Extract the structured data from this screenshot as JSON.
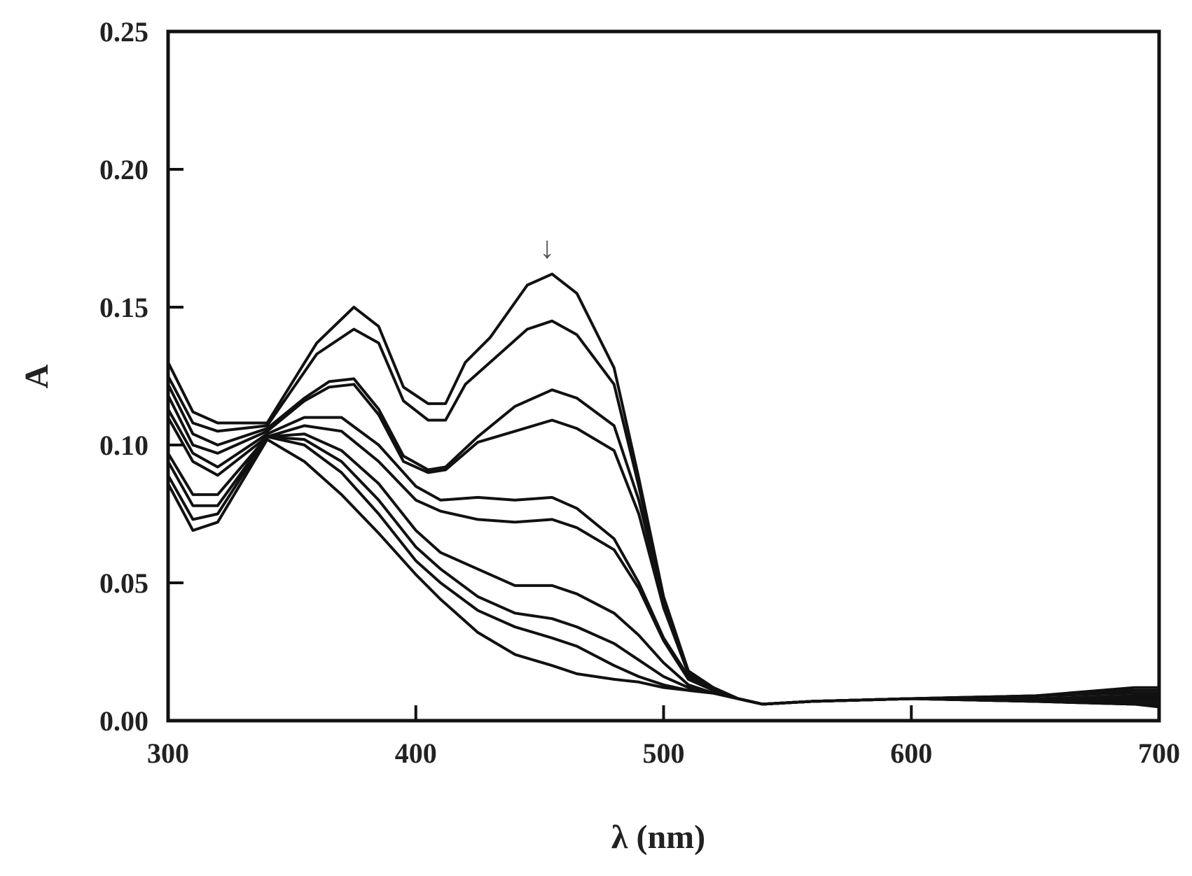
{
  "chart_data": {
    "type": "line",
    "xlabel": "λ (nm)",
    "ylabel": "A",
    "xlim": [
      300,
      700
    ],
    "ylim": [
      0,
      0.25
    ],
    "xticks": [
      300,
      400,
      500,
      600,
      700
    ],
    "xtick_labels": [
      "300",
      "400",
      "500",
      "600",
      "700"
    ],
    "yticks": [
      0,
      0.05,
      0.1,
      0.15,
      0.2,
      0.25
    ],
    "ytick_labels": [
      "0.00",
      "0.05",
      "0.10",
      "0.15",
      "0.20",
      "0.25"
    ],
    "grid": false,
    "legend": "none",
    "line_color": "#111111",
    "annotations": [
      {
        "text": "↓",
        "x": 453,
        "y": 0.172
      }
    ],
    "series": [
      {
        "x": [
          300,
          310,
          320,
          340,
          360,
          375,
          385,
          395,
          405,
          412,
          420,
          430,
          445,
          455,
          465,
          480,
          490,
          500,
          510,
          520,
          530,
          540,
          560,
          600,
          650,
          690,
          700
        ],
        "y": [
          0.13,
          0.112,
          0.108,
          0.108,
          0.137,
          0.15,
          0.143,
          0.121,
          0.115,
          0.115,
          0.13,
          0.139,
          0.158,
          0.162,
          0.155,
          0.128,
          0.088,
          0.045,
          0.018,
          0.012,
          0.008,
          0.006,
          0.007,
          0.008,
          0.009,
          0.012,
          0.012
        ]
      },
      {
        "x": [
          300,
          310,
          320,
          340,
          360,
          375,
          385,
          395,
          405,
          412,
          420,
          430,
          445,
          455,
          465,
          480,
          490,
          500,
          510,
          520,
          530,
          540,
          560,
          600,
          650,
          690,
          700
        ],
        "y": [
          0.125,
          0.108,
          0.105,
          0.107,
          0.133,
          0.142,
          0.137,
          0.116,
          0.109,
          0.109,
          0.122,
          0.13,
          0.142,
          0.145,
          0.14,
          0.122,
          0.085,
          0.044,
          0.018,
          0.012,
          0.008,
          0.006,
          0.007,
          0.008,
          0.009,
          0.011,
          0.011
        ]
      },
      {
        "x": [
          300,
          310,
          320,
          340,
          355,
          365,
          375,
          385,
          395,
          405,
          412,
          425,
          440,
          455,
          465,
          480,
          490,
          500,
          510,
          520,
          530,
          540,
          560,
          600,
          650,
          690,
          700
        ],
        "y": [
          0.122,
          0.104,
          0.1,
          0.106,
          0.117,
          0.123,
          0.124,
          0.113,
          0.096,
          0.091,
          0.092,
          0.103,
          0.114,
          0.12,
          0.117,
          0.107,
          0.08,
          0.043,
          0.018,
          0.012,
          0.008,
          0.006,
          0.007,
          0.008,
          0.009,
          0.01,
          0.01
        ]
      },
      {
        "x": [
          300,
          310,
          320,
          340,
          355,
          365,
          375,
          385,
          395,
          405,
          412,
          425,
          440,
          455,
          465,
          480,
          490,
          500,
          510,
          520,
          530,
          540,
          560,
          600,
          650,
          690,
          700
        ],
        "y": [
          0.118,
          0.1,
          0.097,
          0.105,
          0.116,
          0.121,
          0.122,
          0.111,
          0.094,
          0.09,
          0.091,
          0.101,
          0.105,
          0.109,
          0.106,
          0.098,
          0.075,
          0.041,
          0.017,
          0.012,
          0.008,
          0.006,
          0.007,
          0.008,
          0.008,
          0.009,
          0.009
        ]
      },
      {
        "x": [
          300,
          310,
          320,
          340,
          355,
          370,
          385,
          400,
          410,
          425,
          440,
          455,
          465,
          480,
          490,
          500,
          510,
          520,
          530,
          540,
          560,
          600,
          650,
          690,
          700
        ],
        "y": [
          0.113,
          0.097,
          0.092,
          0.104,
          0.11,
          0.11,
          0.1,
          0.085,
          0.08,
          0.081,
          0.08,
          0.081,
          0.077,
          0.066,
          0.05,
          0.03,
          0.016,
          0.011,
          0.008,
          0.006,
          0.007,
          0.008,
          0.008,
          0.008,
          0.008
        ]
      },
      {
        "x": [
          300,
          310,
          320,
          340,
          355,
          370,
          385,
          400,
          410,
          425,
          440,
          455,
          465,
          480,
          490,
          500,
          510,
          520,
          530,
          540,
          560,
          600,
          650,
          690,
          700
        ],
        "y": [
          0.11,
          0.094,
          0.089,
          0.103,
          0.107,
          0.105,
          0.094,
          0.08,
          0.076,
          0.073,
          0.072,
          0.073,
          0.07,
          0.062,
          0.048,
          0.029,
          0.015,
          0.011,
          0.008,
          0.006,
          0.007,
          0.008,
          0.008,
          0.007,
          0.007
        ]
      },
      {
        "x": [
          300,
          310,
          320,
          340,
          355,
          370,
          385,
          400,
          410,
          425,
          440,
          455,
          465,
          480,
          490,
          500,
          510,
          520,
          530,
          540,
          560,
          600,
          650,
          690,
          700
        ],
        "y": [
          0.097,
          0.082,
          0.082,
          0.103,
          0.104,
          0.098,
          0.086,
          0.069,
          0.061,
          0.055,
          0.049,
          0.049,
          0.046,
          0.039,
          0.031,
          0.021,
          0.013,
          0.01,
          0.008,
          0.006,
          0.007,
          0.008,
          0.007,
          0.007,
          0.007
        ]
      },
      {
        "x": [
          300,
          310,
          320,
          340,
          355,
          370,
          385,
          400,
          410,
          425,
          440,
          455,
          465,
          480,
          490,
          500,
          510,
          520,
          530,
          540,
          560,
          600,
          650,
          690,
          700
        ],
        "y": [
          0.094,
          0.078,
          0.078,
          0.103,
          0.102,
          0.094,
          0.08,
          0.063,
          0.055,
          0.045,
          0.039,
          0.037,
          0.034,
          0.028,
          0.022,
          0.016,
          0.012,
          0.01,
          0.008,
          0.006,
          0.007,
          0.008,
          0.007,
          0.006,
          0.006
        ]
      },
      {
        "x": [
          300,
          310,
          320,
          340,
          355,
          370,
          385,
          400,
          410,
          425,
          440,
          455,
          465,
          480,
          490,
          500,
          510,
          520,
          530,
          540,
          560,
          600,
          650,
          690,
          700
        ],
        "y": [
          0.089,
          0.073,
          0.075,
          0.103,
          0.1,
          0.09,
          0.075,
          0.058,
          0.05,
          0.04,
          0.034,
          0.03,
          0.027,
          0.02,
          0.016,
          0.013,
          0.011,
          0.01,
          0.008,
          0.006,
          0.007,
          0.008,
          0.007,
          0.006,
          0.006
        ]
      },
      {
        "x": [
          300,
          310,
          320,
          340,
          355,
          370,
          385,
          400,
          410,
          425,
          440,
          455,
          465,
          480,
          490,
          500,
          510,
          520,
          530,
          540,
          560,
          600,
          650,
          690,
          700
        ],
        "y": [
          0.086,
          0.069,
          0.072,
          0.102,
          0.094,
          0.082,
          0.068,
          0.053,
          0.044,
          0.032,
          0.024,
          0.02,
          0.017,
          0.015,
          0.014,
          0.012,
          0.011,
          0.01,
          0.008,
          0.006,
          0.007,
          0.008,
          0.007,
          0.006,
          0.005
        ]
      }
    ]
  }
}
